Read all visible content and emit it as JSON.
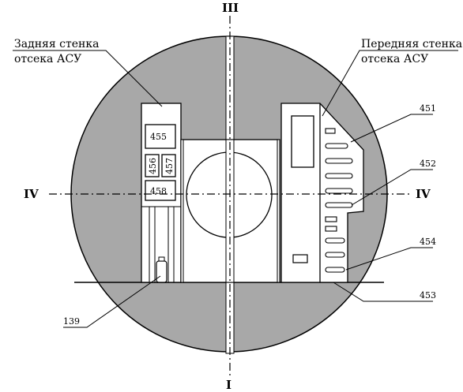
{
  "labels": {
    "rear_wall_line1": "Задняя стенка",
    "rear_wall_line2": "отсека АСУ",
    "front_wall_line1": "Передняя стенка",
    "front_wall_line2": "отсека АСУ"
  },
  "axes": {
    "top": "III",
    "bottom": "I",
    "left": "IV",
    "right": "IV"
  },
  "numbers": {
    "n455": "455",
    "n456": "456",
    "n457": "457",
    "n458": "458",
    "n451": "451",
    "n452": "452",
    "n454": "454",
    "n453": "453",
    "n139": "139"
  },
  "colors": {
    "fill_gray": "#a8a8a8",
    "line": "#000000",
    "background": "#ffffff"
  }
}
